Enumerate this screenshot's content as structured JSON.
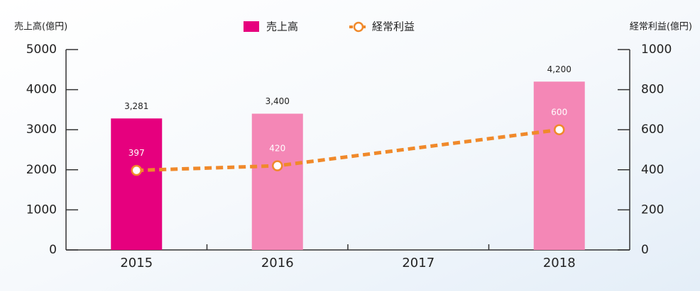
{
  "chart_data": {
    "type": "bar_line",
    "y_label": "売上高(億円)",
    "y2_label": "経常利益(億円)",
    "x": [
      2015,
      2016,
      2017,
      2018
    ],
    "xlim": [
      2014.5,
      2018.5
    ],
    "xticks": [
      2015,
      2016,
      2017,
      2018
    ],
    "ylim": [
      0,
      5000
    ],
    "yticks": [
      0,
      1000,
      2000,
      3000,
      4000,
      5000
    ],
    "y2lim": [
      0,
      1000
    ],
    "y2ticks": [
      0,
      200,
      400,
      600,
      800,
      1000
    ],
    "series": [
      {
        "name": "売上高",
        "type": "bar",
        "color": "#e6007e",
        "colors": [
          "#e6007e",
          "#f487b6",
          "#f487b6",
          "#f487b6"
        ],
        "values": [
          3281,
          3400,
          null,
          4200
        ],
        "value_labels": [
          "3,281",
          "3,400",
          null,
          "4,200"
        ]
      },
      {
        "name": "経常利益",
        "type": "line",
        "axis": "y2",
        "color": "#f0892a",
        "dashed": true,
        "x": [
          2015,
          2016,
          2018
        ],
        "values": [
          397,
          420,
          600
        ]
      }
    ]
  }
}
